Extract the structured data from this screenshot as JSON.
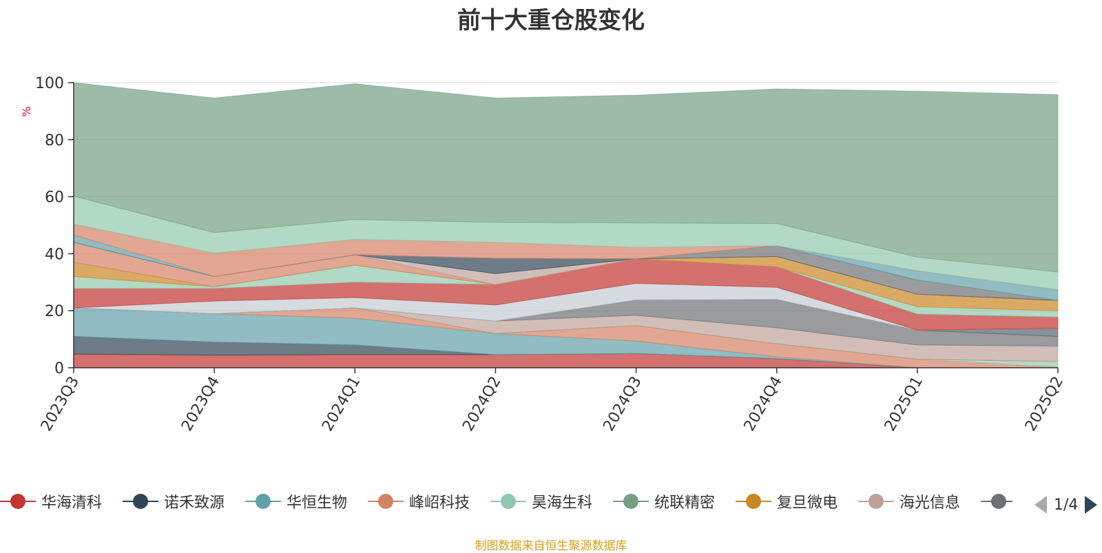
{
  "title": "前十大重仓股变化",
  "source": "制图数据来自恒生聚源数据库",
  "legend_page": "1/4",
  "chart_data": {
    "type": "area",
    "stacked": true,
    "ylabel": "%",
    "ylim": [
      0,
      100
    ],
    "yticks": [
      0,
      20,
      40,
      60,
      80,
      100
    ],
    "grid": true,
    "legend_position": "bottom",
    "categories": [
      "2023Q3",
      "2023Q4",
      "2024Q1",
      "2024Q2",
      "2024Q3",
      "2024Q4",
      "2025Q1",
      "2025Q2"
    ],
    "series": [
      {
        "name": "华海清科",
        "color": "#c23531",
        "values": [
          4.8,
          4.4,
          4.6,
          4.6,
          5.0,
          3.2,
          0,
          0
        ]
      },
      {
        "name": "诺禾致源",
        "color": "#2f4554",
        "values": [
          6.2,
          4.6,
          3.4,
          0,
          0,
          0,
          0,
          0
        ]
      },
      {
        "name": "华恒生物",
        "color": "#61a0a8",
        "values": [
          10,
          10,
          9.4,
          7.4,
          4.4,
          0.6,
          0,
          0
        ]
      },
      {
        "name": "峰岹科技",
        "color": "#d48265",
        "values": [
          0,
          0,
          3.6,
          0,
          5.4,
          4.6,
          3.0,
          0.2
        ]
      },
      {
        "name": "昊海生科",
        "color": "#91c7ae",
        "values": [
          0,
          0,
          0,
          0,
          0,
          0,
          0,
          2.0
        ]
      },
      {
        "name": "统联精密",
        "color": "#749f83",
        "values": [
          0,
          0,
          0,
          0,
          0,
          0,
          0,
          0
        ]
      },
      {
        "name": "复旦微电",
        "color": "#ca8622",
        "values": [
          0,
          0,
          0,
          0,
          0,
          0,
          0,
          0
        ]
      },
      {
        "name": "海光信息",
        "color": "#bda29a",
        "values": [
          0,
          0,
          0,
          4.4,
          3.6,
          5.6,
          5.0,
          5.4
        ]
      },
      {
        "name": "",
        "color": "#6e7074",
        "values": [
          0,
          0,
          0,
          0,
          5.4,
          10.0,
          5.2,
          3.4
        ]
      },
      {
        "name": "",
        "color": "#546570",
        "values": [
          0,
          0,
          0,
          0,
          0,
          0,
          0,
          2.8
        ]
      },
      {
        "name": "",
        "color": "#c4ccd3",
        "values": [
          0,
          4.4,
          3.6,
          5.6,
          5.8,
          4.2,
          0,
          0
        ]
      },
      {
        "name": "",
        "color": "#c23531",
        "values": [
          6.8,
          4.4,
          5.4,
          7.2,
          8.6,
          7.2,
          5.6,
          4.0
        ]
      },
      {
        "name": "",
        "color": "#91c7ae",
        "values": [
          4.2,
          0.6,
          6.0,
          0,
          0,
          0,
          2.6,
          2.2
        ]
      },
      {
        "name": "",
        "color": "#ca8622",
        "values": [
          5.0,
          0,
          0,
          0,
          0,
          3.6,
          4.4,
          3.6
        ]
      },
      {
        "name": "",
        "color": "#d48265",
        "values": [
          7.0,
          3.6,
          3.6,
          0,
          0,
          0,
          0,
          0
        ]
      },
      {
        "name": "",
        "color": "#bda29a",
        "values": [
          0,
          0,
          0,
          3.8,
          0,
          0,
          0,
          0
        ]
      },
      {
        "name": "",
        "color": "#2f4554",
        "values": [
          0,
          0,
          0,
          5.4,
          0,
          0,
          0,
          0
        ]
      },
      {
        "name": "",
        "color": "#6e7074",
        "values": [
          0,
          0,
          0,
          0,
          0,
          3.8,
          5.0,
          0
        ]
      },
      {
        "name": "",
        "color": "#61a0a8",
        "values": [
          2.6,
          0,
          0,
          0,
          0,
          0,
          3.2,
          3.8
        ]
      },
      {
        "name": "",
        "color": "#d48265",
        "values": [
          3.8,
          8.2,
          5.4,
          5.6,
          4.0,
          0,
          0,
          0
        ]
      },
      {
        "name": "",
        "color": "#91c7ae",
        "values": [
          9.8,
          7.2,
          7.0,
          7.0,
          8.6,
          7.8,
          4.8,
          6.2
        ]
      },
      {
        "name": "",
        "color": "#749f83",
        "values": [
          39.8,
          47.2,
          47.6,
          43.6,
          44.8,
          47.2,
          58.2,
          62.2
        ]
      }
    ]
  },
  "legend_items": [
    {
      "label": "华海清科",
      "color": "#c23531"
    },
    {
      "label": "诺禾致源",
      "color": "#2f4554"
    },
    {
      "label": "华恒生物",
      "color": "#61a0a8"
    },
    {
      "label": "峰岹科技",
      "color": "#d48265"
    },
    {
      "label": "昊海生科",
      "color": "#91c7ae"
    },
    {
      "label": "统联精密",
      "color": "#749f83"
    },
    {
      "label": "复旦微电",
      "color": "#ca8622"
    },
    {
      "label": "海光信息",
      "color": "#bda29a"
    },
    {
      "label": "",
      "color": "#6e7074"
    }
  ]
}
